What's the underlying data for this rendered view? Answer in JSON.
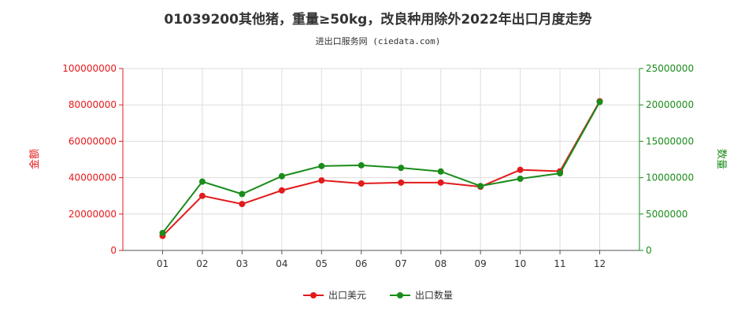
{
  "chart_data": {
    "type": "line",
    "title": "01039200其他猪，重量≥50kg，改良种用除外2022年出口月度走势",
    "subtitle": "进出口服务网 (ciedata.com)",
    "categories": [
      "01",
      "02",
      "03",
      "04",
      "05",
      "06",
      "07",
      "08",
      "09",
      "10",
      "11",
      "12"
    ],
    "y_left": {
      "label": "金额",
      "ylim": [
        0,
        100000000
      ],
      "ticks": [
        "0",
        "20000000",
        "40000000",
        "60000000",
        "80000000",
        "100000000"
      ],
      "color": "#e31a1c"
    },
    "y_right": {
      "label": "数量",
      "ylim": [
        0,
        25000000
      ],
      "ticks": [
        "0",
        "5000000",
        "10000000",
        "15000000",
        "20000000",
        "25000000"
      ],
      "color": "#1a8c1a"
    },
    "series": [
      {
        "name": "出口美元",
        "axis": "left",
        "color": "#e31a1c",
        "values": [
          8000000,
          30000000,
          25500000,
          33000000,
          38500000,
          36800000,
          37300000,
          37300000,
          35000000,
          44300000,
          43500000,
          82000000
        ]
      },
      {
        "name": "出口数量",
        "axis": "right",
        "color": "#1a8c1a",
        "values": [
          2400000,
          9450000,
          7750000,
          10200000,
          11600000,
          11700000,
          11350000,
          10850000,
          8850000,
          9850000,
          10600000,
          20400000
        ]
      }
    ],
    "grid": true,
    "legend_position": "bottom-center"
  }
}
